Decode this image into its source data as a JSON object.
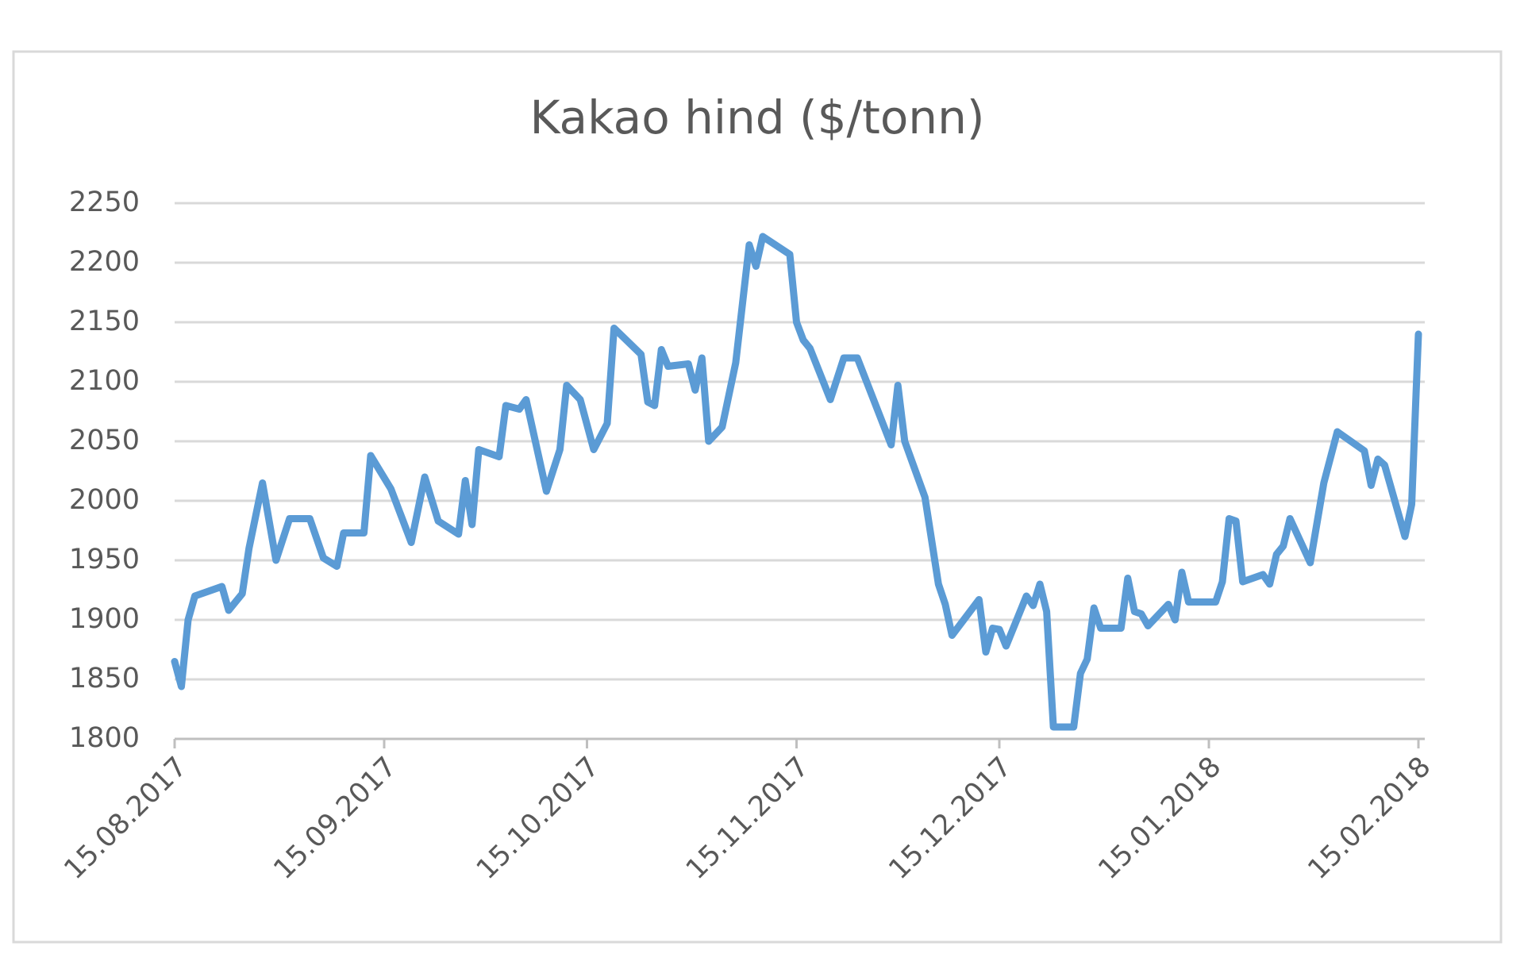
{
  "chart_data": {
    "type": "line",
    "title": "Kakao hind ($/tonn)",
    "x": [
      "2017-08-15",
      "2017-08-16",
      "2017-08-17",
      "2017-08-18",
      "2017-08-22",
      "2017-08-23",
      "2017-08-25",
      "2017-08-26",
      "2017-08-28",
      "2017-08-30",
      "2017-09-01",
      "2017-09-04",
      "2017-09-06",
      "2017-09-08",
      "2017-09-09",
      "2017-09-12",
      "2017-09-13",
      "2017-09-16",
      "2017-09-19",
      "2017-09-21",
      "2017-09-23",
      "2017-09-26",
      "2017-09-27",
      "2017-09-28",
      "2017-09-29",
      "2017-10-02",
      "2017-10-03",
      "2017-10-05",
      "2017-10-06",
      "2017-10-09",
      "2017-10-11",
      "2017-10-12",
      "2017-10-14",
      "2017-10-16",
      "2017-10-18",
      "2017-10-19",
      "2017-10-23",
      "2017-10-24",
      "2017-10-25",
      "2017-10-26",
      "2017-10-27",
      "2017-10-30",
      "2017-10-31",
      "2017-11-01",
      "2017-11-02",
      "2017-11-04",
      "2017-11-06",
      "2017-11-08",
      "2017-11-09",
      "2017-11-10",
      "2017-11-14",
      "2017-11-15",
      "2017-11-16",
      "2017-11-17",
      "2017-11-20",
      "2017-11-22",
      "2017-11-24",
      "2017-11-29",
      "2017-11-30",
      "2017-12-01",
      "2017-12-04",
      "2017-12-06",
      "2017-12-07",
      "2017-12-08",
      "2017-12-12",
      "2017-12-13",
      "2017-12-14",
      "2017-12-15",
      "2017-12-16",
      "2017-12-19",
      "2017-12-20",
      "2017-12-21",
      "2017-12-22",
      "2017-12-23",
      "2017-12-26",
      "2017-12-27",
      "2017-12-28",
      "2017-12-29",
      "2017-12-30",
      "2018-01-02",
      "2018-01-03",
      "2018-01-04",
      "2018-01-05",
      "2018-01-06",
      "2018-01-09",
      "2018-01-10",
      "2018-01-11",
      "2018-01-12",
      "2018-01-16",
      "2018-01-17",
      "2018-01-18",
      "2018-01-19",
      "2018-01-20",
      "2018-01-23",
      "2018-01-24",
      "2018-01-25",
      "2018-01-26",
      "2018-01-27",
      "2018-01-30",
      "2018-02-01",
      "2018-02-03",
      "2018-02-07",
      "2018-02-08",
      "2018-02-09",
      "2018-02-10",
      "2018-02-13",
      "2018-02-14",
      "2018-02-15"
    ],
    "values": [
      1865,
      1844,
      1900,
      1920,
      1928,
      1908,
      1922,
      1960,
      2015,
      1950,
      1985,
      1985,
      1952,
      1945,
      1973,
      1973,
      2038,
      2010,
      1965,
      2020,
      1983,
      1972,
      2017,
      1980,
      2043,
      2037,
      2080,
      2077,
      2085,
      2008,
      2043,
      2097,
      2085,
      2043,
      2065,
      2145,
      2123,
      2083,
      2080,
      2127,
      2113,
      2115,
      2093,
      2120,
      2050,
      2062,
      2116,
      2215,
      2197,
      2222,
      2207,
      2150,
      2135,
      2128,
      2085,
      2120,
      2120,
      2047,
      2097,
      2050,
      2003,
      1930,
      1913,
      1887,
      1917,
      1873,
      1893,
      1892,
      1878,
      1920,
      1912,
      1930,
      1907,
      1810,
      1810,
      1855,
      1867,
      1910,
      1893,
      1893,
      1935,
      1907,
      1905,
      1895,
      1913,
      1900,
      1940,
      1915,
      1915,
      1932,
      1985,
      1983,
      1932,
      1938,
      1930,
      1955,
      1962,
      1985,
      1948,
      2015,
      2058,
      2042,
      2013,
      2035,
      2030,
      1970,
      1997,
      2140
    ],
    "color": "#5b9bd5",
    "xlim": [
      "2017-08-15",
      "2018-02-15"
    ],
    "xticks": [
      {
        "value": "2017-08-15",
        "label": "15.08.2017"
      },
      {
        "value": "2017-09-15",
        "label": "15.09.2017"
      },
      {
        "value": "2017-10-15",
        "label": "15.10.2017"
      },
      {
        "value": "2017-11-15",
        "label": "15.11.2017"
      },
      {
        "value": "2017-12-15",
        "label": "15.12.2017"
      },
      {
        "value": "2018-01-15",
        "label": "15.01.2018"
      },
      {
        "value": "2018-02-15",
        "label": "15.02.2018"
      }
    ],
    "ylim": [
      1800,
      2250
    ],
    "yticks": [
      1800,
      1850,
      1900,
      1950,
      2000,
      2050,
      2100,
      2150,
      2200,
      2250
    ],
    "grid": true
  }
}
